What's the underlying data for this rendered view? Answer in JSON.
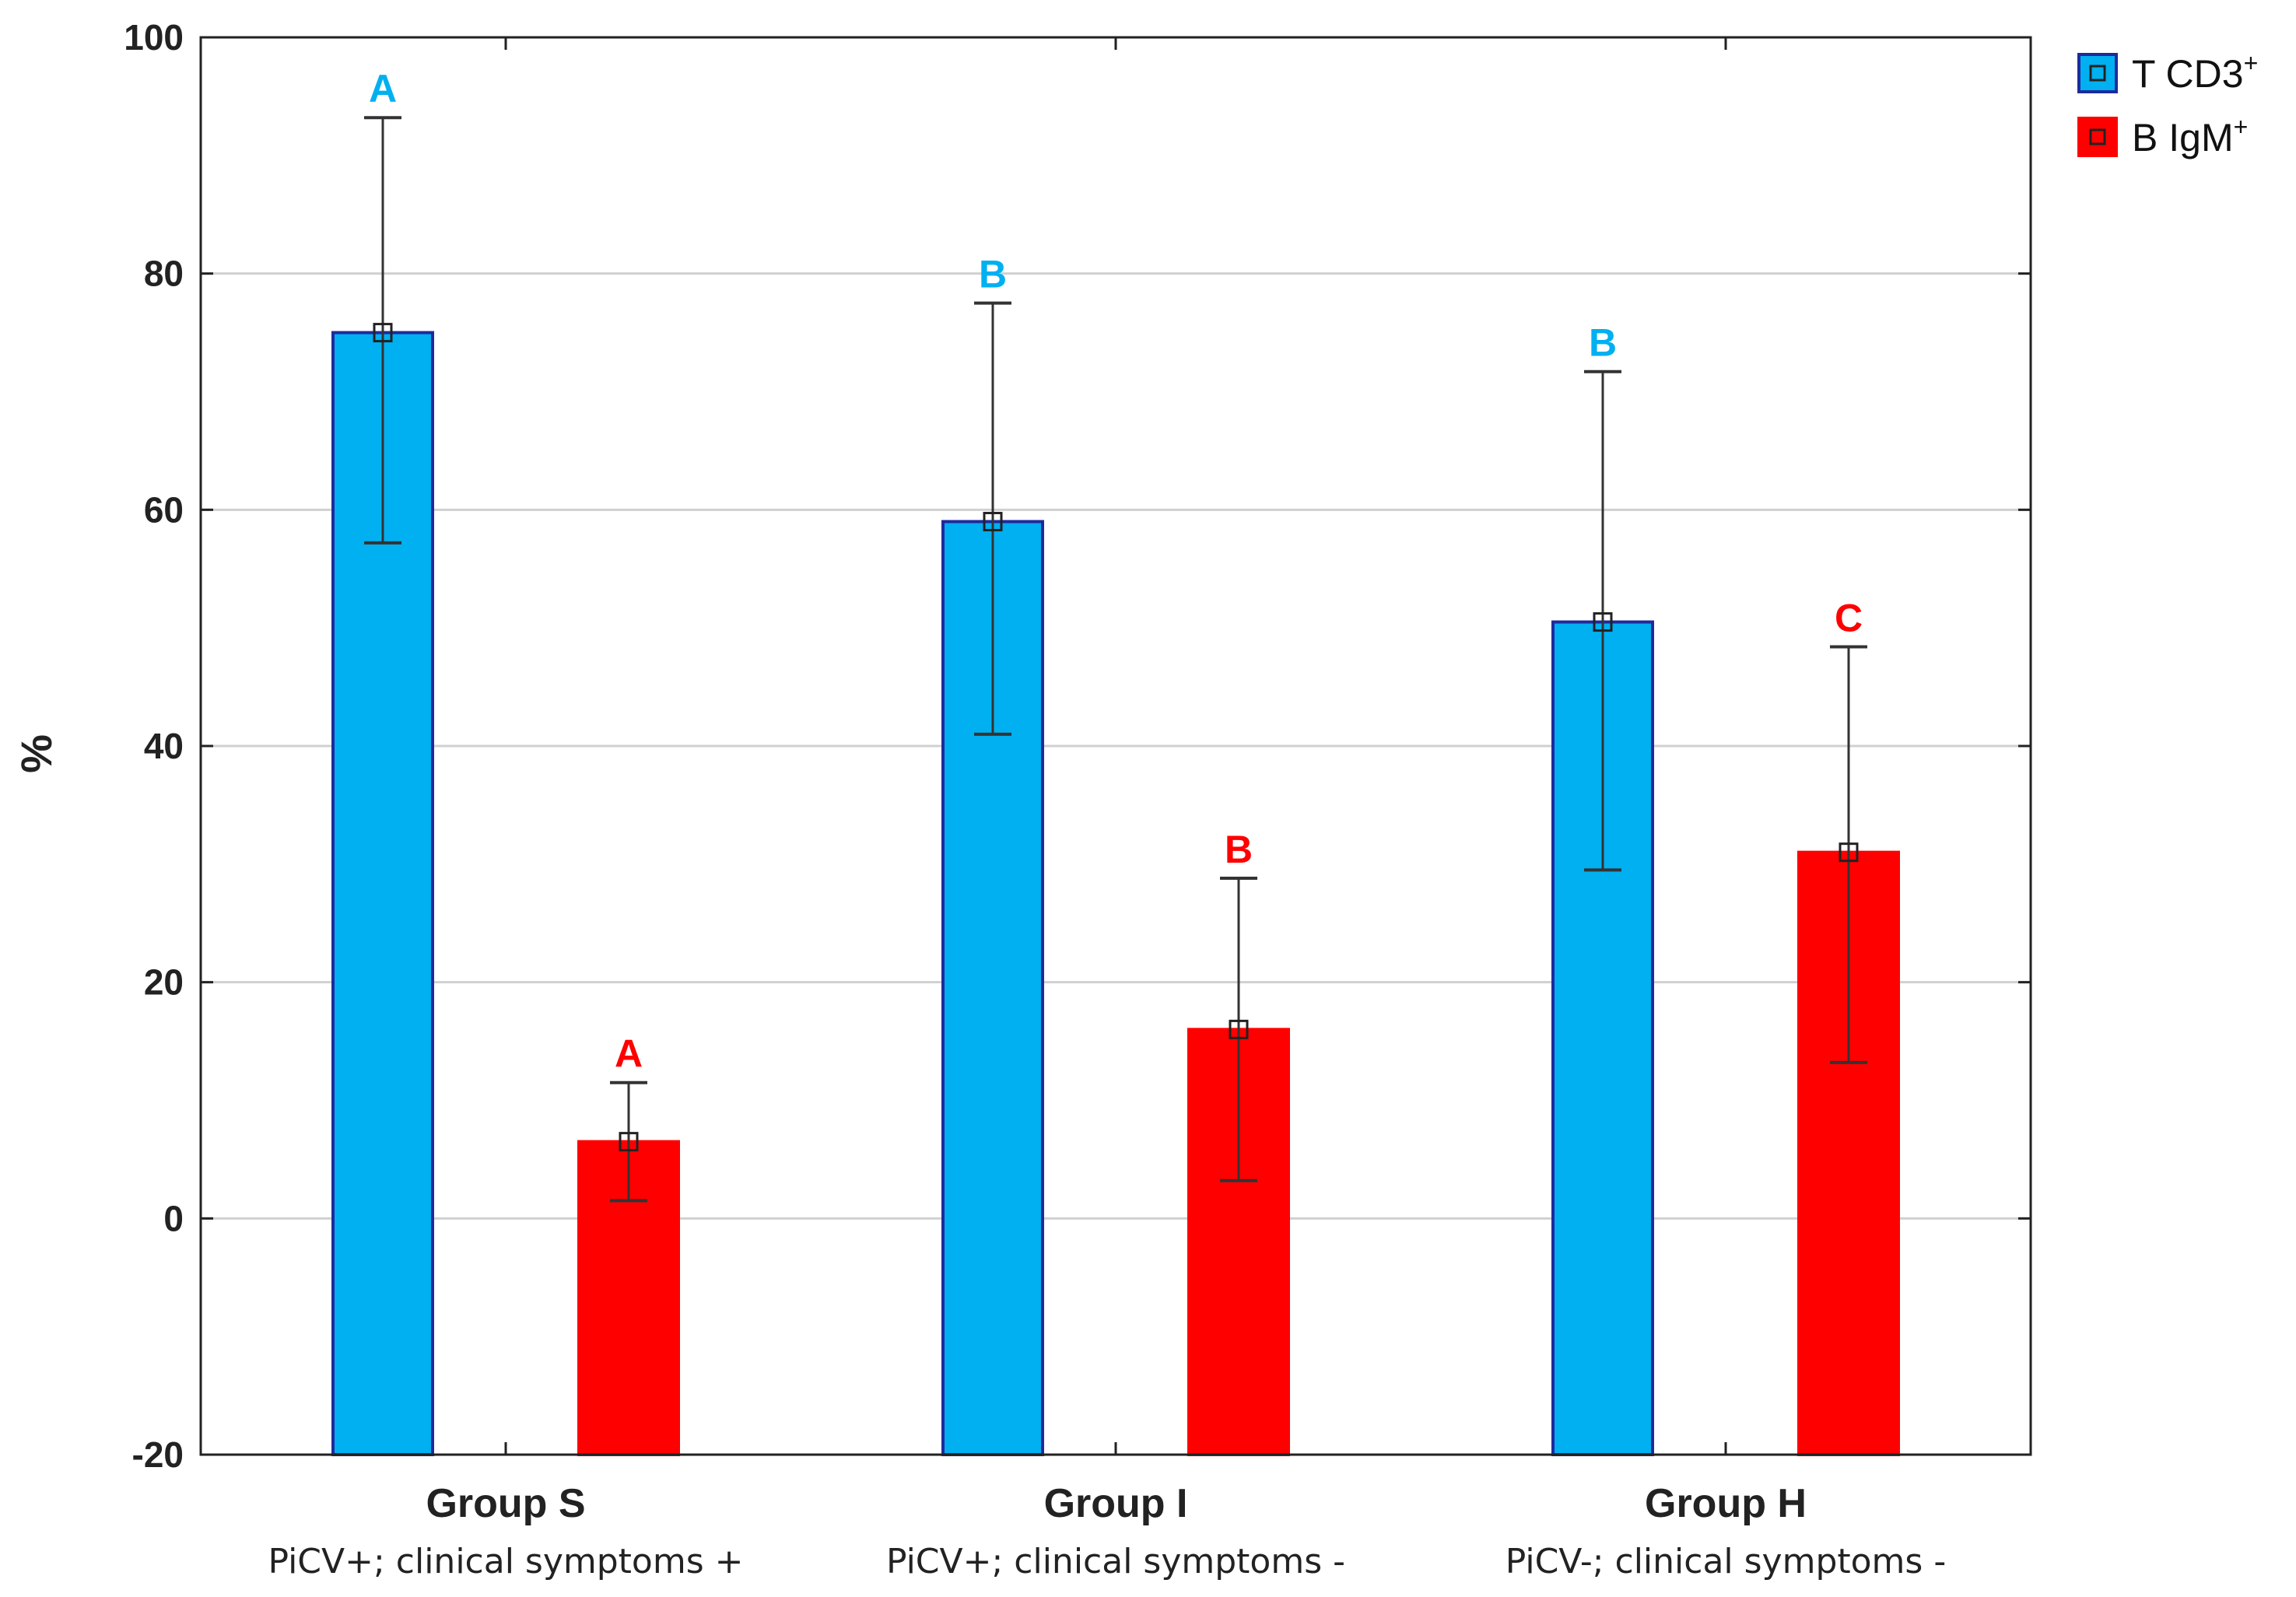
{
  "chart_data": {
    "type": "bar",
    "title": "",
    "xlabel": "",
    "ylabel": "%",
    "ylim": [
      -20,
      100
    ],
    "yticks": [
      -20,
      0,
      20,
      40,
      60,
      80,
      100
    ],
    "ytick_labels": [
      "-20",
      "0",
      "20",
      "40",
      "60",
      "80",
      "100"
    ],
    "grid": true,
    "legend_position": "top-right",
    "categories": [
      "Group S",
      "Group I",
      "Group H"
    ],
    "category_subtitles": [
      "PiCV+; clinical symptoms +",
      "PiCV+; clinical symptoms -",
      "PiCV-; clinical symptoms -"
    ],
    "series": [
      {
        "name": "T CD3",
        "superscript": "+",
        "color": "#00b0f0",
        "edge_color": "#1f2a9c",
        "letter_color": "#00b0f0",
        "values": [
          75,
          59,
          50.5
        ],
        "error_low": [
          57.2,
          41,
          29.5
        ],
        "error_high": [
          93.2,
          77.5,
          71.7
        ],
        "letters": [
          "A",
          "B",
          "B"
        ]
      },
      {
        "name": "B IgM",
        "superscript": "+",
        "color": "#ff0000",
        "edge_color": "#ff0000",
        "letter_color": "#ff0000",
        "values": [
          6.5,
          16,
          31
        ],
        "error_low": [
          1.5,
          3.2,
          13.2
        ],
        "error_high": [
          11.5,
          28.8,
          48.4
        ],
        "letters": [
          "A",
          "B",
          "C"
        ]
      }
    ]
  }
}
